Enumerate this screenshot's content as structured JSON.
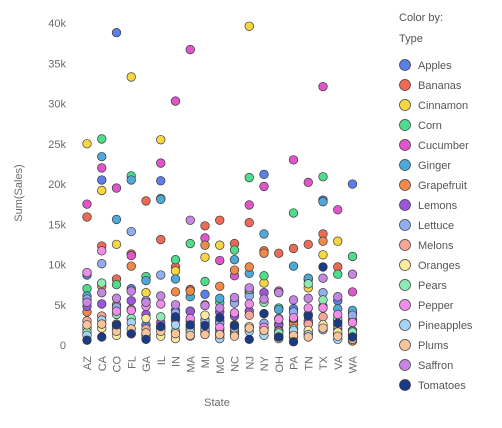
{
  "chart_data": {
    "type": "scatter",
    "ylabel": "Sum(Sales)",
    "xlabel": "State",
    "categories": [
      "AZ",
      "CA",
      "CO",
      "FL",
      "GA",
      "IL",
      "IN",
      "MA",
      "MI",
      "MO",
      "NC",
      "NJ",
      "NY",
      "OH",
      "PA",
      "TN",
      "TX",
      "VA",
      "WA"
    ],
    "ylim": [
      0,
      40000
    ],
    "yticks": [
      0,
      5000,
      10000,
      15000,
      20000,
      25000,
      30000,
      35000,
      40000
    ],
    "ytick_labels": [
      "0",
      "5k",
      "10k",
      "15k",
      "20k",
      "25k",
      "30k",
      "35k",
      "40k"
    ],
    "grid": false,
    "legend_position": "right",
    "legend_title": [
      "Color by:",
      "Type"
    ],
    "series": [
      {
        "name": "Apples",
        "color": "#5b7fe6",
        "values": [
          8700,
          20500,
          38800,
          7000,
          2500,
          20400,
          4300,
          2200,
          6300,
          3000,
          1800,
          6500,
          21200,
          2600,
          4500,
          3800,
          18000,
          5500,
          20000
        ]
      },
      {
        "name": "Bananas",
        "color": "#ec6b56",
        "values": [
          15900,
          12300,
          8200,
          11300,
          17900,
          13100,
          9700,
          6900,
          14800,
          15500,
          12600,
          15200,
          11700,
          11400,
          12000,
          12500,
          13800,
          9700,
          3100
        ]
      },
      {
        "name": "Cinnamon",
        "color": "#f6d743",
        "values": [
          25000,
          19200,
          12500,
          33300,
          6500,
          25500,
          9200,
          4200,
          10900,
          12400,
          5300,
          39600,
          7700,
          3300,
          3000,
          7100,
          11200,
          12900,
          3900
        ]
      },
      {
        "name": "Corn",
        "color": "#4fdc8c",
        "values": [
          7000,
          25600,
          7500,
          21000,
          8500,
          18200,
          10600,
          12600,
          7900,
          5300,
          11800,
          20800,
          8600,
          4600,
          16400,
          8100,
          20900,
          8800,
          11000
        ]
      },
      {
        "name": "Cucumber",
        "color": "#e055c9",
        "values": [
          17500,
          22000,
          19500,
          11100,
          5300,
          22600,
          30300,
          36700,
          13300,
          10500,
          8600,
          17400,
          19700,
          6700,
          23000,
          20200,
          32100,
          16800,
          6600
        ]
      },
      {
        "name": "Ginger",
        "color": "#4ea8d8",
        "values": [
          6100,
          23400,
          15600,
          20500,
          8000,
          18100,
          8200,
          6000,
          1800,
          5800,
          10600,
          8900,
          13800,
          4400,
          9800,
          8300,
          17800,
          4500,
          4300
        ]
      },
      {
        "name": "Grapefruit",
        "color": "#f08a4b",
        "values": [
          4100,
          7300,
          5000,
          9800,
          1300,
          2300,
          6600,
          6700,
          12400,
          7300,
          9300,
          9700,
          11400,
          1000,
          2600,
          2700,
          12900,
          3000,
          500
        ]
      },
      {
        "name": "Lemons",
        "color": "#9b57d9",
        "values": [
          4800,
          5100,
          2400,
          5500,
          3800,
          2800,
          3100,
          4200,
          2700,
          4100,
          3600,
          4200,
          6500,
          2400,
          3300,
          3000,
          4800,
          2000,
          1800
        ]
      },
      {
        "name": "Lettuce",
        "color": "#93aef0",
        "values": [
          5700,
          10100,
          4700,
          14100,
          5500,
          8700,
          4000,
          1100,
          3100,
          2700,
          5200,
          6100,
          2700,
          1800,
          4100,
          1400,
          6500,
          1300,
          3700
        ]
      },
      {
        "name": "Melons",
        "color": "#f5a898",
        "values": [
          3000,
          3600,
          2600,
          4400,
          2000,
          2200,
          1500,
          2900,
          1500,
          1900,
          1600,
          3700,
          2100,
          1700,
          1400,
          2600,
          3500,
          2400,
          1300
        ]
      },
      {
        "name": "Oranges",
        "color": "#f8eaa0",
        "values": [
          2100,
          2100,
          1200,
          1400,
          3300,
          1100,
          800,
          1900,
          3700,
          1200,
          1300,
          2300,
          3900,
          1200,
          1000,
          1800,
          2500,
          1600,
          1200
        ]
      },
      {
        "name": "Pears",
        "color": "#8eeab4",
        "values": [
          1600,
          7700,
          3800,
          3300,
          800,
          3500,
          1700,
          2500,
          2400,
          1500,
          2500,
          6900,
          5300,
          1500,
          2000,
          7600,
          5600,
          3300,
          1600
        ]
      },
      {
        "name": "Pepper",
        "color": "#f08de6",
        "values": [
          9000,
          11700,
          4200,
          4300,
          4800,
          5100,
          3400,
          3300,
          5000,
          2200,
          4000,
          5100,
          2200,
          3200,
          3400,
          4600,
          4600,
          3800,
          2800
        ]
      },
      {
        "name": "Pineapples",
        "color": "#a9d3f2",
        "values": [
          1200,
          3100,
          2000,
          2800,
          1100,
          2000,
          2500,
          1600,
          2000,
          800,
          2100,
          1700,
          1200,
          900,
          1800,
          1300,
          1900,
          700,
          700
        ]
      },
      {
        "name": "Plums",
        "color": "#f7c49b",
        "values": [
          2500,
          2600,
          1700,
          2000,
          1500,
          1700,
          1400,
          1200,
          1300,
          1300,
          1100,
          2100,
          1800,
          800,
          1200,
          1000,
          2100,
          1100,
          700
        ]
      },
      {
        "name": "Saffron",
        "color": "#c587e2",
        "values": [
          5300,
          6500,
          5800,
          6700,
          5300,
          6100,
          5000,
          15500,
          4900,
          4600,
          5900,
          7100,
          5700,
          6500,
          5600,
          5800,
          8300,
          6000,
          8800
        ]
      },
      {
        "name": "Tomatoes",
        "color": "#1b3a86",
        "values": [
          600,
          1000,
          2500,
          1400,
          700,
          2300,
          3500,
          2500,
          2400,
          3400,
          2400,
          700,
          3900,
          1000,
          400,
          3600,
          9700,
          2700,
          1000
        ]
      }
    ]
  }
}
